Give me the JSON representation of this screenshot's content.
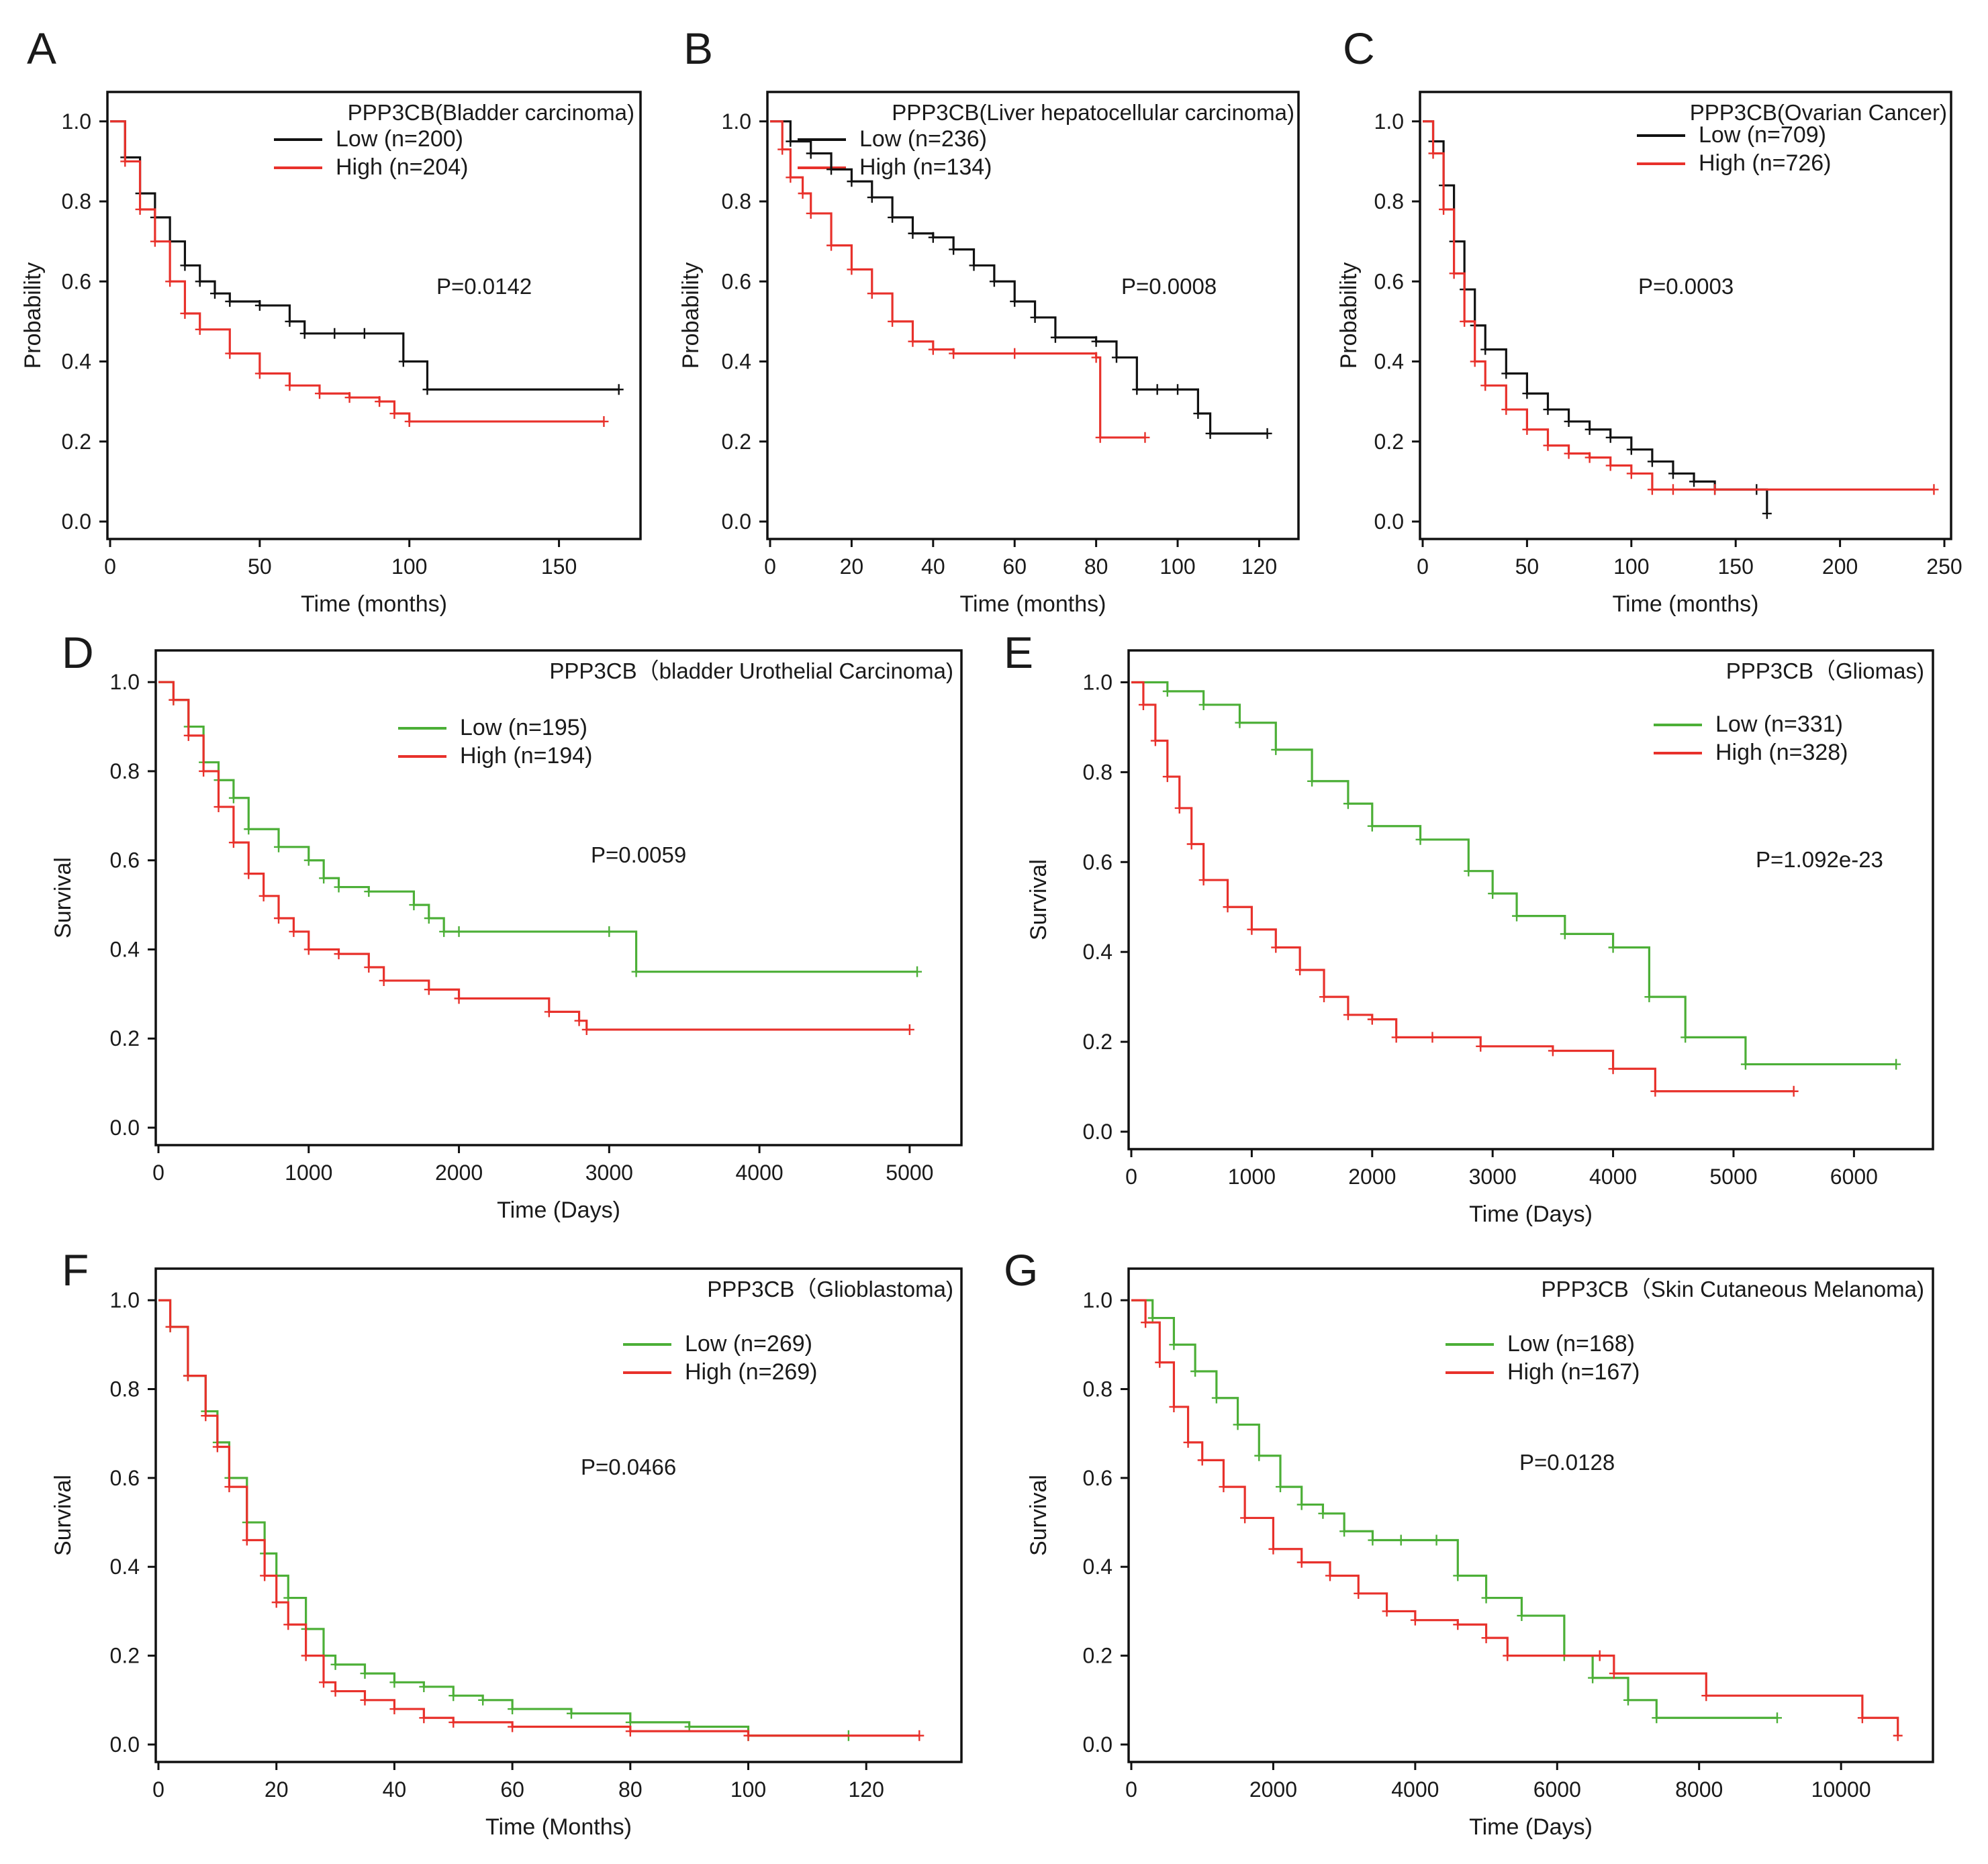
{
  "figure": {
    "colors": {
      "black": "#111111",
      "red": "#e8312b",
      "green": "#4caf37"
    },
    "panels": [
      {
        "letter": "A",
        "title": "PPP3CB(Bladder carcinoma)",
        "xlabel": "Time (months)",
        "ylabel": "Probability",
        "xticks": [
          "0",
          "50",
          "100",
          "150"
        ],
        "yticks": [
          "0.0",
          "0.2",
          "0.4",
          "0.6",
          "0.8",
          "1.0"
        ],
        "pvalue": "P=0.0142",
        "legend": [
          {
            "label": "Low (n=200)",
            "color": "#111111"
          },
          {
            "label": "High (n=204)",
            "color": "#e8312b"
          }
        ]
      },
      {
        "letter": "B",
        "title": "PPP3CB(Liver hepatocellular carcinoma)",
        "xlabel": "Time (months)",
        "ylabel": "Probability",
        "xticks": [
          "0",
          "20",
          "40",
          "60",
          "80",
          "100",
          "120"
        ],
        "yticks": [
          "0.0",
          "0.2",
          "0.4",
          "0.6",
          "0.8",
          "1.0"
        ],
        "pvalue": "P=0.0008",
        "legend": [
          {
            "label": "Low (n=236)",
            "color": "#111111"
          },
          {
            "label": "High (n=134)",
            "color": "#e8312b"
          }
        ]
      },
      {
        "letter": "C",
        "title": "PPP3CB(Ovarian Cancer)",
        "xlabel": "Time (months)",
        "ylabel": "Probability",
        "xticks": [
          "0",
          "50",
          "100",
          "150",
          "200",
          "250"
        ],
        "yticks": [
          "0.0",
          "0.2",
          "0.4",
          "0.6",
          "0.8",
          "1.0"
        ],
        "pvalue": "P=0.0003",
        "legend": [
          {
            "label": "Low (n=709)",
            "color": "#111111"
          },
          {
            "label": "High (n=726)",
            "color": "#e8312b"
          }
        ]
      },
      {
        "letter": "D",
        "title": "PPP3CB（bladder Urothelial Carcinoma)",
        "xlabel": "Time (Days)",
        "ylabel": "Survival",
        "xticks": [
          "0",
          "1000",
          "2000",
          "3000",
          "4000",
          "5000"
        ],
        "yticks": [
          "0.0",
          "0.2",
          "0.4",
          "0.6",
          "0.8",
          "1.0"
        ],
        "pvalue": "P=0.0059",
        "legend": [
          {
            "label": "Low (n=195)",
            "color": "#4caf37"
          },
          {
            "label": "High (n=194)",
            "color": "#e8312b"
          }
        ]
      },
      {
        "letter": "E",
        "title": "PPP3CB（Gliomas)",
        "xlabel": "Time (Days)",
        "ylabel": "Survival",
        "xticks": [
          "0",
          "1000",
          "2000",
          "3000",
          "4000",
          "5000",
          "6000"
        ],
        "yticks": [
          "0.0",
          "0.2",
          "0.4",
          "0.6",
          "0.8",
          "1.0"
        ],
        "pvalue": "P=1.092e-23",
        "legend": [
          {
            "label": "Low (n=331)",
            "color": "#4caf37"
          },
          {
            "label": "High (n=328)",
            "color": "#e8312b"
          }
        ]
      },
      {
        "letter": "F",
        "title": "PPP3CB（Glioblastoma)",
        "xlabel": "Time (Months)",
        "ylabel": "Survival",
        "xticks": [
          "0",
          "20",
          "40",
          "60",
          "80",
          "100",
          "120"
        ],
        "yticks": [
          "0.0",
          "0.2",
          "0.4",
          "0.6",
          "0.8",
          "1.0"
        ],
        "pvalue": "P=0.0466",
        "legend": [
          {
            "label": "Low (n=269)",
            "color": "#4caf37"
          },
          {
            "label": "High (n=269)",
            "color": "#e8312b"
          }
        ]
      },
      {
        "letter": "G",
        "title": "PPP3CB（Skin Cutaneous Melanoma)",
        "xlabel": "Time (Days)",
        "ylabel": "Survival",
        "xticks": [
          "0",
          "2000",
          "4000",
          "6000",
          "8000",
          "10000"
        ],
        "yticks": [
          "0.0",
          "0.2",
          "0.4",
          "0.6",
          "0.8",
          "1.0"
        ],
        "pvalue": "P=0.0128",
        "legend": [
          {
            "label": "Low (n=168)",
            "color": "#4caf37"
          },
          {
            "label": "High (n=167)",
            "color": "#e8312b"
          }
        ]
      }
    ]
  },
  "chart_data": [
    {
      "type": "line",
      "panel": "A",
      "title": "PPP3CB(Bladder carcinoma)",
      "xlabel": "Time (months)",
      "ylabel": "Probability",
      "xlim": [
        0,
        175
      ],
      "ylim": [
        0,
        1.05
      ],
      "grid": false,
      "legend": "top-right",
      "series": [
        {
          "name": "Low (n=200)",
          "color": "#111111",
          "step": true,
          "x": [
            0,
            5,
            10,
            15,
            20,
            25,
            30,
            35,
            40,
            50,
            60,
            65,
            75,
            85,
            98,
            106,
            170
          ],
          "y": [
            1.0,
            0.91,
            0.82,
            0.76,
            0.7,
            0.64,
            0.6,
            0.57,
            0.55,
            0.54,
            0.5,
            0.47,
            0.47,
            0.47,
            0.4,
            0.33,
            0.33
          ]
        },
        {
          "name": "High (n=204)",
          "color": "#e8312b",
          "step": true,
          "x": [
            0,
            5,
            10,
            15,
            20,
            25,
            30,
            40,
            50,
            60,
            70,
            80,
            90,
            95,
            100,
            165
          ],
          "y": [
            1.0,
            0.9,
            0.78,
            0.7,
            0.6,
            0.52,
            0.48,
            0.42,
            0.37,
            0.34,
            0.32,
            0.31,
            0.3,
            0.27,
            0.25,
            0.25
          ]
        }
      ]
    },
    {
      "type": "line",
      "panel": "B",
      "title": "PPP3CB(Liver hepatocellular carcinoma)",
      "xlabel": "Time (months)",
      "ylabel": "Probability",
      "xlim": [
        0,
        128
      ],
      "ylim": [
        0,
        1.05
      ],
      "grid": false,
      "legend": "top-right",
      "series": [
        {
          "name": "Low (n=236)",
          "color": "#111111",
          "step": true,
          "x": [
            0,
            5,
            10,
            15,
            20,
            25,
            30,
            35,
            40,
            45,
            50,
            55,
            60,
            65,
            70,
            80,
            85,
            90,
            95,
            100,
            105,
            108,
            122
          ],
          "y": [
            1.0,
            0.95,
            0.92,
            0.88,
            0.85,
            0.81,
            0.76,
            0.72,
            0.71,
            0.68,
            0.64,
            0.6,
            0.55,
            0.51,
            0.46,
            0.45,
            0.41,
            0.33,
            0.33,
            0.33,
            0.27,
            0.22,
            0.22
          ]
        },
        {
          "name": "High (n=134)",
          "color": "#e8312b",
          "step": true,
          "x": [
            0,
            3,
            5,
            8,
            10,
            15,
            20,
            25,
            30,
            35,
            40,
            45,
            60,
            80,
            81,
            92
          ],
          "y": [
            1.0,
            0.93,
            0.86,
            0.82,
            0.77,
            0.69,
            0.63,
            0.57,
            0.5,
            0.45,
            0.43,
            0.42,
            0.42,
            0.41,
            0.21,
            0.21
          ]
        }
      ]
    },
    {
      "type": "line",
      "panel": "C",
      "title": "PPP3CB(Ovarian Cancer)",
      "xlabel": "Time (months)",
      "ylabel": "Probability",
      "xlim": [
        0,
        250
      ],
      "ylim": [
        0,
        1.05
      ],
      "grid": false,
      "legend": "top-right",
      "series": [
        {
          "name": "Low (n=709)",
          "color": "#111111",
          "step": true,
          "x": [
            0,
            5,
            10,
            15,
            20,
            25,
            30,
            40,
            50,
            60,
            70,
            80,
            90,
            100,
            110,
            120,
            130,
            140,
            160,
            165
          ],
          "y": [
            1.0,
            0.95,
            0.84,
            0.7,
            0.58,
            0.49,
            0.43,
            0.37,
            0.32,
            0.28,
            0.25,
            0.23,
            0.21,
            0.18,
            0.15,
            0.12,
            0.1,
            0.08,
            0.08,
            0.02
          ]
        },
        {
          "name": "High (n=726)",
          "color": "#e8312b",
          "step": true,
          "x": [
            0,
            5,
            10,
            15,
            20,
            25,
            30,
            40,
            50,
            60,
            70,
            80,
            90,
            100,
            110,
            120,
            140,
            245
          ],
          "y": [
            1.0,
            0.92,
            0.78,
            0.62,
            0.5,
            0.4,
            0.34,
            0.28,
            0.23,
            0.19,
            0.17,
            0.16,
            0.14,
            0.12,
            0.08,
            0.08,
            0.08,
            0.08
          ]
        }
      ]
    },
    {
      "type": "line",
      "panel": "D",
      "title": "PPP3CB（bladder Urothelial Carcinoma)",
      "xlabel": "Time (Days)",
      "ylabel": "Survival",
      "xlim": [
        0,
        5300
      ],
      "ylim": [
        0,
        1.05
      ],
      "grid": false,
      "legend": "top-right",
      "series": [
        {
          "name": "Low (n=195)",
          "color": "#4caf37",
          "step": true,
          "x": [
            0,
            100,
            200,
            300,
            400,
            500,
            600,
            800,
            1000,
            1100,
            1200,
            1400,
            1700,
            1800,
            1900,
            2000,
            3000,
            3180,
            5050
          ],
          "y": [
            1.0,
            0.96,
            0.9,
            0.82,
            0.78,
            0.74,
            0.67,
            0.63,
            0.6,
            0.56,
            0.54,
            0.53,
            0.5,
            0.47,
            0.44,
            0.44,
            0.44,
            0.35,
            0.35
          ]
        },
        {
          "name": "High (n=194)",
          "color": "#e8312b",
          "step": true,
          "x": [
            0,
            100,
            200,
            300,
            400,
            500,
            600,
            700,
            800,
            900,
            1000,
            1200,
            1400,
            1500,
            1800,
            2000,
            2600,
            2800,
            2850,
            5000
          ],
          "y": [
            1.0,
            0.96,
            0.88,
            0.8,
            0.72,
            0.64,
            0.57,
            0.52,
            0.47,
            0.44,
            0.4,
            0.39,
            0.36,
            0.33,
            0.31,
            0.29,
            0.26,
            0.24,
            0.22,
            0.22
          ]
        }
      ]
    },
    {
      "type": "line",
      "panel": "E",
      "title": "PPP3CB（Gliomas)",
      "xlabel": "Time (Days)",
      "ylabel": "Survival",
      "xlim": [
        0,
        6600
      ],
      "ylim": [
        0,
        1.05
      ],
      "grid": false,
      "legend": "top-right",
      "series": [
        {
          "name": "Low (n=331)",
          "color": "#4caf37",
          "step": true,
          "x": [
            0,
            300,
            600,
            900,
            1200,
            1500,
            1800,
            2000,
            2400,
            2800,
            3000,
            3200,
            3600,
            4000,
            4300,
            4600,
            5100,
            6350
          ],
          "y": [
            1.0,
            0.98,
            0.95,
            0.91,
            0.85,
            0.78,
            0.73,
            0.68,
            0.65,
            0.58,
            0.53,
            0.48,
            0.44,
            0.41,
            0.3,
            0.21,
            0.15,
            0.15
          ]
        },
        {
          "name": "High (n=328)",
          "color": "#e8312b",
          "step": true,
          "x": [
            0,
            100,
            200,
            300,
            400,
            500,
            600,
            800,
            1000,
            1200,
            1400,
            1600,
            1800,
            2000,
            2200,
            2500,
            2900,
            3500,
            4000,
            4350,
            5500
          ],
          "y": [
            1.0,
            0.95,
            0.87,
            0.79,
            0.72,
            0.64,
            0.56,
            0.5,
            0.45,
            0.41,
            0.36,
            0.3,
            0.26,
            0.25,
            0.21,
            0.21,
            0.19,
            0.18,
            0.14,
            0.09,
            0.09
          ]
        }
      ]
    },
    {
      "type": "line",
      "panel": "F",
      "title": "PPP3CB（Glioblastoma)",
      "xlabel": "Time (Months)",
      "ylabel": "Survival",
      "xlim": [
        0,
        135
      ],
      "ylim": [
        0,
        1.05
      ],
      "grid": false,
      "legend": "top-right",
      "series": [
        {
          "name": "Low (n=269)",
          "color": "#4caf37",
          "step": true,
          "x": [
            0,
            2,
            5,
            8,
            10,
            12,
            15,
            18,
            20,
            22,
            25,
            28,
            30,
            35,
            40,
            45,
            50,
            55,
            60,
            70,
            80,
            90,
            100,
            117
          ],
          "y": [
            1.0,
            0.94,
            0.83,
            0.75,
            0.68,
            0.6,
            0.5,
            0.43,
            0.38,
            0.33,
            0.26,
            0.2,
            0.18,
            0.16,
            0.14,
            0.13,
            0.11,
            0.1,
            0.08,
            0.07,
            0.05,
            0.04,
            0.02,
            0.02
          ]
        },
        {
          "name": "High (n=269)",
          "color": "#e8312b",
          "step": true,
          "x": [
            0,
            2,
            5,
            8,
            10,
            12,
            15,
            18,
            20,
            22,
            25,
            28,
            30,
            35,
            40,
            45,
            50,
            60,
            80,
            100,
            129
          ],
          "y": [
            1.0,
            0.94,
            0.83,
            0.74,
            0.67,
            0.58,
            0.46,
            0.38,
            0.32,
            0.27,
            0.2,
            0.14,
            0.12,
            0.1,
            0.08,
            0.06,
            0.05,
            0.04,
            0.03,
            0.02,
            0.02
          ]
        }
      ]
    },
    {
      "type": "line",
      "panel": "G",
      "title": "PPP3CB（Skin Cutaneous Melanoma)",
      "xlabel": "Time (Days)",
      "ylabel": "Survival",
      "xlim": [
        0,
        11200
      ],
      "ylim": [
        0,
        1.05
      ],
      "grid": false,
      "legend": "top-right",
      "series": [
        {
          "name": "Low (n=168)",
          "color": "#4caf37",
          "step": true,
          "x": [
            0,
            300,
            600,
            900,
            1200,
            1500,
            1800,
            2100,
            2400,
            2700,
            3000,
            3400,
            3800,
            4300,
            4600,
            5000,
            5500,
            6100,
            6500,
            7000,
            7400,
            9100
          ],
          "y": [
            1.0,
            0.96,
            0.9,
            0.84,
            0.78,
            0.72,
            0.65,
            0.58,
            0.54,
            0.52,
            0.48,
            0.46,
            0.46,
            0.46,
            0.38,
            0.33,
            0.29,
            0.2,
            0.15,
            0.1,
            0.06,
            0.06
          ]
        },
        {
          "name": "High (n=167)",
          "color": "#e8312b",
          "step": true,
          "x": [
            0,
            200,
            400,
            600,
            800,
            1000,
            1300,
            1600,
            2000,
            2400,
            2800,
            3200,
            3600,
            4000,
            4600,
            5000,
            5300,
            6600,
            6800,
            8100,
            10300,
            10800
          ],
          "y": [
            1.0,
            0.95,
            0.86,
            0.76,
            0.68,
            0.64,
            0.58,
            0.51,
            0.44,
            0.41,
            0.38,
            0.34,
            0.3,
            0.28,
            0.27,
            0.24,
            0.2,
            0.2,
            0.16,
            0.11,
            0.06,
            0.02
          ]
        }
      ]
    }
  ]
}
